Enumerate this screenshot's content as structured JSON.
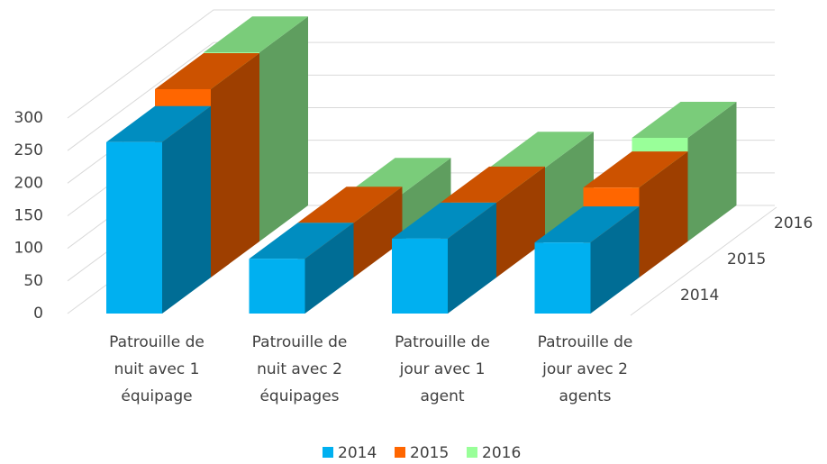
{
  "chart_data": {
    "type": "bar3d",
    "categories": [
      "Patrouille de nuit avec 1 équipage",
      "Patrouille de nuit avec 2 équipages",
      "Patrouille de jour avec 1 agent",
      "Patrouille de jour avec 2 agents"
    ],
    "series": [
      {
        "name": "2014",
        "color": "#00b0f0",
        "values": [
          263,
          84,
          115,
          109
        ]
      },
      {
        "name": "2015",
        "color": "#ff6600",
        "values": [
          289,
          84,
          115,
          138
        ]
      },
      {
        "name": "2016",
        "color": "#99ff99",
        "values": [
          290,
          73,
          113,
          159
        ]
      }
    ],
    "ylim": [
      0,
      300
    ],
    "yticks": [
      0,
      50,
      100,
      150,
      200,
      250,
      300
    ],
    "grid": true,
    "legend": "bottom"
  }
}
